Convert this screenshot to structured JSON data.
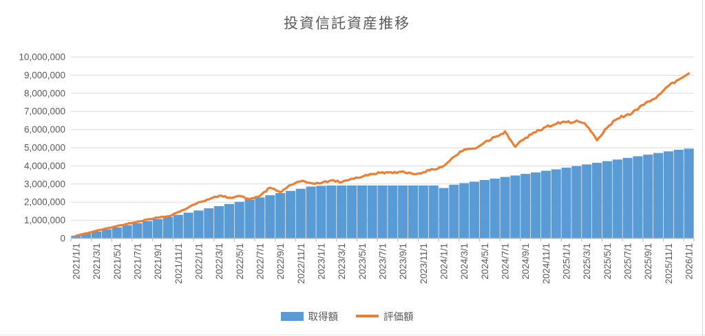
{
  "chart_data": {
    "type": "combo-bar-line",
    "title": "投資信託資産推移",
    "ylim": [
      0,
      10000000
    ],
    "y_tick_step": 1000000,
    "y_tick_labels": [
      "0",
      "1,000,000",
      "2,000,000",
      "3,000,000",
      "4,000,000",
      "5,000,000",
      "6,000,000",
      "7,000,000",
      "8,000,000",
      "9,000,000",
      "10,000,000"
    ],
    "grid": true,
    "legend_position": "bottom",
    "x_label_interval": 2,
    "x_tick_labels": [
      "2021/1/1",
      "2021/3/1",
      "2021/5/1",
      "2021/7/1",
      "2021/9/1",
      "2021/11/1",
      "2022/1/1",
      "2022/3/1",
      "2022/5/1",
      "2022/7/1",
      "2022/9/1",
      "2022/11/1",
      "2023/1/1",
      "2023/3/1",
      "2023/5/1",
      "2023/7/1",
      "2023/9/1",
      "2023/11/1",
      "2024/1/1",
      "2024/3/1",
      "2024/5/1",
      "2024/7/1",
      "2024/9/1",
      "2024/11/1",
      "2025/1/1",
      "2025/3/1",
      "2025/5/1",
      "2025/7/1",
      "2025/9/1",
      "2025/11/1",
      "2026/1/1"
    ],
    "x": [
      "2021/1/1",
      "2021/2/1",
      "2021/3/1",
      "2021/4/1",
      "2021/5/1",
      "2021/6/1",
      "2021/7/1",
      "2021/8/1",
      "2021/9/1",
      "2021/10/1",
      "2021/11/1",
      "2021/12/1",
      "2022/1/1",
      "2022/2/1",
      "2022/3/1",
      "2022/4/1",
      "2022/5/1",
      "2022/6/1",
      "2022/7/1",
      "2022/8/1",
      "2022/9/1",
      "2022/10/1",
      "2022/11/1",
      "2022/12/1",
      "2023/1/1",
      "2023/2/1",
      "2023/3/1",
      "2023/4/1",
      "2023/5/1",
      "2023/6/1",
      "2023/7/1",
      "2023/8/1",
      "2023/9/1",
      "2023/10/1",
      "2023/11/1",
      "2023/12/1",
      "2024/1/1",
      "2024/2/1",
      "2024/3/1",
      "2024/4/1",
      "2024/5/1",
      "2024/6/1",
      "2024/7/1",
      "2024/8/1",
      "2024/9/1",
      "2024/10/1",
      "2024/11/1",
      "2024/12/1",
      "2025/1/1",
      "2025/2/1",
      "2025/3/1",
      "2025/4/1",
      "2025/5/1",
      "2025/6/1",
      "2025/7/1",
      "2025/8/1",
      "2025/9/1",
      "2025/10/1",
      "2025/11/1",
      "2025/12/1",
      "2026/1/1"
    ],
    "series": [
      {
        "name": "取得額",
        "type": "bar",
        "color": "#5B9BD5",
        "values": [
          150000,
          270000,
          380000,
          500000,
          610000,
          730000,
          840000,
          960000,
          1070000,
          1190000,
          1300000,
          1420000,
          1540000,
          1660000,
          1780000,
          1900000,
          2020000,
          2140000,
          2260000,
          2380000,
          2500000,
          2620000,
          2740000,
          2860000,
          2900000,
          2920000,
          2920000,
          2920000,
          2920000,
          2920000,
          2920000,
          2920000,
          2920000,
          2920000,
          2920000,
          2920000,
          2780000,
          2960000,
          3050000,
          3130000,
          3220000,
          3300000,
          3390000,
          3470000,
          3560000,
          3640000,
          3730000,
          3810000,
          3900000,
          3990000,
          4080000,
          4170000,
          4260000,
          4350000,
          4440000,
          4530000,
          4620000,
          4710000,
          4800000,
          4890000,
          4950000
        ]
      },
      {
        "name": "評価額",
        "type": "line",
        "color": "#ED7D31",
        "values": [
          150000,
          280000,
          420000,
          550000,
          680000,
          800000,
          920000,
          1050000,
          1150000,
          1220000,
          1450000,
          1700000,
          2000000,
          2150000,
          2350000,
          2250000,
          2350000,
          2150000,
          2350000,
          2800000,
          2550000,
          2950000,
          3150000,
          3050000,
          3050000,
          3200000,
          3100000,
          3300000,
          3400000,
          3550000,
          3650000,
          3600000,
          3700000,
          3550000,
          3650000,
          3800000,
          4000000,
          4500000,
          4900000,
          4950000,
          5300000,
          5600000,
          5900000,
          5050000,
          5550000,
          5850000,
          6150000,
          6300000,
          6400000,
          6500000,
          6200000,
          5400000,
          6100000,
          6600000,
          6850000,
          7100000,
          7550000,
          7900000,
          8400000,
          8750000,
          9100000
        ]
      }
    ],
    "colors": {
      "text": "#595959",
      "gridline": "#d9d9d9",
      "axis": "#bfbfbf",
      "background": "#ffffff"
    }
  }
}
